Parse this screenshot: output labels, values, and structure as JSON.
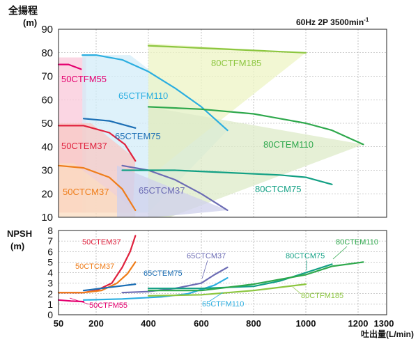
{
  "header": {
    "y_label_line1": "全揚程",
    "y_label_line2": "(m)",
    "condition": "60Hz 2P 3500min",
    "condition_sup": "-1"
  },
  "npsh": {
    "label_line1": "NPSH",
    "label_line2": "(m)"
  },
  "x_axis_label": "吐出量(L/min)",
  "chart_data": [
    {
      "type": "line",
      "panel": "head",
      "ylabel": "全揚程 (m)",
      "xlabel": "",
      "xscale": "linear",
      "xlim": [
        50,
        1300
      ],
      "ylim": [
        10,
        90
      ],
      "y_ticks": [
        10,
        20,
        30,
        40,
        50,
        60,
        70,
        80,
        90
      ],
      "grid": true,
      "series": [
        {
          "name": "50CTFM55",
          "color": "#e4006f",
          "fill": "#f9c8da",
          "x": [
            50,
            90,
            140
          ],
          "y": [
            75,
            75,
            73
          ],
          "region": [
            [
              50,
              78
            ],
            [
              160,
              78
            ],
            [
              160,
              12
            ],
            [
              50,
              12
            ]
          ]
        },
        {
          "name": "65CTFM110",
          "color": "#2baee0",
          "fill": "#d3ecf8",
          "x": [
            145,
            200,
            300,
            400,
            500,
            600,
            700
          ],
          "y": [
            79,
            79,
            77,
            72,
            65,
            57,
            47
          ],
          "region": [
            [
              145,
              79
            ],
            [
              330,
              79
            ],
            [
              700,
              47
            ],
            [
              400,
              12
            ],
            [
              145,
              12
            ]
          ]
        },
        {
          "name": "80CTFM185",
          "color": "#8cc63f",
          "fill": "#eef4c4",
          "x": [
            400,
            600,
            800,
            1000
          ],
          "y": [
            83,
            82,
            81,
            80
          ],
          "region": [
            [
              400,
              84
            ],
            [
              1000,
              80
            ],
            [
              400,
              27
            ]
          ]
        },
        {
          "name": "65CTEM75",
          "color": "#1b6eb4",
          "x": [
            150,
            250,
            350
          ],
          "y": [
            52,
            51,
            48
          ]
        },
        {
          "name": "50CTEM37",
          "color": "#e0213d",
          "fill": "#f8c8c4",
          "x": [
            50,
            150,
            250,
            310,
            350
          ],
          "y": [
            49,
            49,
            46,
            41,
            34
          ],
          "region": [
            [
              50,
              50
            ],
            [
              180,
              50
            ],
            [
              350,
              35
            ],
            [
              340,
              12
            ],
            [
              50,
              12
            ]
          ]
        },
        {
          "name": "80CTEM110",
          "color": "#2ea84c",
          "fill": "#ddebc8",
          "x": [
            400,
            600,
            800,
            1000,
            1100,
            1220
          ],
          "y": [
            57,
            56,
            54,
            50,
            47,
            41
          ],
          "region": [
            [
              400,
              57
            ],
            [
              1220,
              41
            ],
            [
              480,
              10
            ],
            [
              400,
              10
            ]
          ]
        },
        {
          "name": "50CTCM37",
          "color": "#ef7d1a",
          "fill": "#fbdcc0",
          "x": [
            50,
            150,
            250,
            300,
            350
          ],
          "y": [
            32,
            31,
            27,
            22,
            13
          ],
          "region": [
            [
              50,
              33
            ],
            [
              110,
              33
            ],
            [
              350,
              13
            ],
            [
              350,
              10
            ],
            [
              50,
              10
            ]
          ]
        },
        {
          "name": "65CTCM37",
          "color": "#6c6cb4",
          "fill": "#cfd0ec",
          "x": [
            300,
            400,
            500,
            600,
            700
          ],
          "y": [
            32,
            30,
            26,
            20,
            13
          ],
          "region": [
            [
              280,
              32
            ],
            [
              700,
              13
            ],
            [
              420,
              10
            ],
            [
              280,
              10
            ]
          ]
        },
        {
          "name": "80CTCM75",
          "color": "#12a084",
          "x": [
            300,
            500,
            700,
            900,
            1000,
            1100
          ],
          "y": [
            30,
            30,
            29,
            28,
            27,
            24
          ]
        }
      ]
    },
    {
      "type": "line",
      "panel": "npsh",
      "ylabel": "NPSH (m)",
      "xlabel": "吐出量(L/min)",
      "xscale": "linear",
      "xlim": [
        50,
        1300
      ],
      "ylim": [
        0,
        8
      ],
      "x_ticks": [
        50,
        200,
        400,
        600,
        800,
        1000,
        1200,
        1300
      ],
      "y_ticks": [
        0,
        1,
        2,
        3,
        4,
        5,
        6,
        7,
        8
      ],
      "grid": true,
      "series": [
        {
          "name": "50CTEM37",
          "color": "#e0213d",
          "x": [
            50,
            150,
            200,
            260,
            300,
            330,
            350
          ],
          "y": [
            2.1,
            2.1,
            2.3,
            3.0,
            4.5,
            6.0,
            7.5
          ]
        },
        {
          "name": "50CTCM37",
          "color": "#ef7d1a",
          "x": [
            50,
            150,
            220,
            280,
            320,
            350
          ],
          "y": [
            2.1,
            2.1,
            2.3,
            3.0,
            3.9,
            5.0
          ]
        },
        {
          "name": "65CTEM75",
          "color": "#1b6eb4",
          "x": [
            150,
            250,
            350
          ],
          "y": [
            2.3,
            2.6,
            2.9
          ]
        },
        {
          "name": "50CTFM55",
          "color": "#e4006f",
          "x": [
            50,
            100,
            150
          ],
          "y": [
            1.4,
            1.3,
            1.25
          ]
        },
        {
          "name": "65CTFM110",
          "color": "#2baee0",
          "x": [
            150,
            300,
            450,
            550,
            650,
            700
          ],
          "y": [
            1.4,
            1.5,
            1.7,
            2.0,
            2.8,
            3.5
          ]
        },
        {
          "name": "65CTCM37",
          "color": "#6c6cb4",
          "x": [
            300,
            400,
            500,
            600,
            650,
            700
          ],
          "y": [
            2.1,
            2.2,
            2.5,
            3.0,
            3.8,
            4.5
          ]
        },
        {
          "name": "80CTCM75",
          "color": "#12a084",
          "x": [
            400,
            600,
            800,
            900,
            1000,
            1100
          ],
          "y": [
            2.5,
            2.5,
            2.7,
            3.2,
            4.0,
            4.8
          ]
        },
        {
          "name": "80CTEM110",
          "color": "#2ea84c",
          "x": [
            400,
            600,
            800,
            1000,
            1100,
            1220
          ],
          "y": [
            2.3,
            2.3,
            2.9,
            3.8,
            4.6,
            5.0
          ]
        },
        {
          "name": "80CTFM185",
          "color": "#8cc63f",
          "x": [
            400,
            600,
            800,
            1000
          ],
          "y": [
            1.8,
            1.9,
            2.3,
            2.9
          ]
        }
      ]
    }
  ]
}
